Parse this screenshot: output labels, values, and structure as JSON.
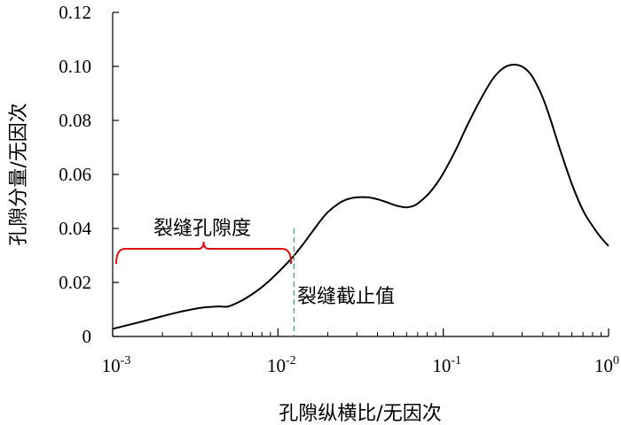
{
  "chart_data": {
    "type": "line",
    "title": "",
    "xlabel": "孔隙纵横比/无因次",
    "ylabel": "孔隙分量/无因次",
    "x_scale": "log",
    "xlim": [
      0.001,
      1
    ],
    "ylim": [
      0,
      0.12
    ],
    "x_ticks": [
      {
        "value": 0.001,
        "base": "10",
        "exp": "-3"
      },
      {
        "value": 0.01,
        "base": "10",
        "exp": "-2"
      },
      {
        "value": 0.1,
        "base": "10",
        "exp": "-1"
      },
      {
        "value": 1,
        "base": "10",
        "exp": "0"
      }
    ],
    "y_ticks": [
      {
        "value": 0,
        "label": "0"
      },
      {
        "value": 0.02,
        "label": "0.02"
      },
      {
        "value": 0.04,
        "label": "0.04"
      },
      {
        "value": 0.06,
        "label": "0.06"
      },
      {
        "value": 0.08,
        "label": "0.08"
      },
      {
        "value": 0.1,
        "label": "0.10"
      },
      {
        "value": 0.12,
        "label": "0.12"
      }
    ],
    "grid": false,
    "series": [
      {
        "color": "#000000",
        "x": [
          0.001,
          0.0015,
          0.002,
          0.0025,
          0.003,
          0.0035,
          0.004,
          0.0045,
          0.005,
          0.006,
          0.007,
          0.008,
          0.009,
          0.01,
          0.012,
          0.014,
          0.016,
          0.018,
          0.02,
          0.023,
          0.026,
          0.03,
          0.035,
          0.04,
          0.045,
          0.05,
          0.055,
          0.06,
          0.065,
          0.07,
          0.08,
          0.09,
          0.1,
          0.12,
          0.14,
          0.17,
          0.2,
          0.23,
          0.26,
          0.29,
          0.32,
          0.35,
          0.4,
          0.45,
          0.5,
          0.6,
          0.7,
          0.8,
          0.9,
          1.0
        ],
        "y": [
          0.0028,
          0.0055,
          0.0075,
          0.009,
          0.01,
          0.0107,
          0.011,
          0.0111,
          0.0111,
          0.0132,
          0.0157,
          0.0183,
          0.021,
          0.0237,
          0.0287,
          0.0337,
          0.0385,
          0.0427,
          0.046,
          0.049,
          0.0507,
          0.0515,
          0.0515,
          0.0508,
          0.0498,
          0.0488,
          0.0481,
          0.0478,
          0.0482,
          0.0492,
          0.0523,
          0.0561,
          0.0604,
          0.0695,
          0.0783,
          0.0883,
          0.0955,
          0.0993,
          0.1006,
          0.1003,
          0.0987,
          0.0957,
          0.0884,
          0.0795,
          0.0706,
          0.0564,
          0.0467,
          0.0409,
          0.0366,
          0.0335
        ]
      }
    ],
    "cutoff": {
      "x": 0.0125,
      "label": "裂缝截止值",
      "color": "#3cb371"
    },
    "bracket": {
      "x_start": 0.00105,
      "x_end": 0.012,
      "y": 0.0295,
      "label": "裂缝孔隙度",
      "color": "#e01010"
    }
  }
}
